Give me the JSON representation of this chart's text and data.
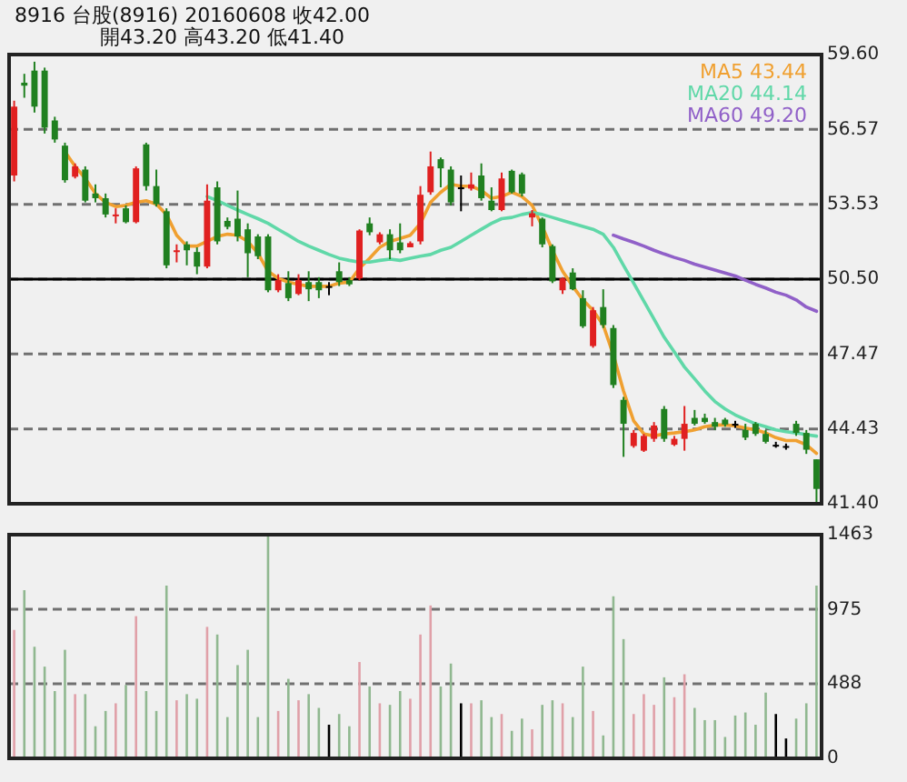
{
  "chart_data": [
    {
      "type": "candlestick",
      "title": "8916 台股(8916) 20160608 收42.00",
      "subtitle": "開43.20 高43.20 低41.40",
      "categories": [
        null,
        null,
        null,
        null,
        null,
        null,
        null,
        null,
        null,
        null,
        null,
        null,
        null,
        null,
        null,
        null,
        null,
        null,
        null,
        null,
        null,
        null,
        null,
        null,
        null,
        null,
        null,
        null,
        null,
        null,
        null,
        null,
        null,
        null,
        null,
        null,
        null,
        null,
        null,
        null,
        null,
        null,
        null,
        null,
        null,
        null,
        null,
        null,
        null,
        null,
        null,
        null,
        null,
        null,
        null,
        null,
        null,
        null,
        null,
        null,
        null,
        null,
        null,
        null,
        null,
        null,
        null,
        null,
        null,
        null,
        null,
        null,
        null,
        null,
        null,
        null,
        null,
        null,
        null,
        null
      ],
      "ohlc": [
        [
          54.7,
          57.73,
          54.46,
          57.49
        ],
        [
          58.46,
          58.82,
          57.85,
          58.34
        ],
        [
          58.95,
          59.31,
          57.25,
          57.49
        ],
        [
          58.95,
          59.07,
          56.4,
          56.64
        ],
        [
          56.93,
          57.08,
          56.03,
          56.16
        ],
        [
          55.91,
          56.03,
          54.41,
          54.51
        ],
        [
          54.65,
          55.19,
          54.58,
          55.07
        ],
        [
          54.94,
          55.07,
          53.61,
          53.68
        ],
        [
          53.97,
          54.34,
          53.61,
          53.78
        ],
        [
          53.78,
          53.97,
          53.0,
          53.12
        ],
        [
          53.05,
          53.37,
          52.76,
          53.12
        ],
        [
          53.37,
          53.49,
          52.76,
          52.81
        ],
        [
          52.81,
          55.07,
          52.76,
          54.99
        ],
        [
          55.96,
          56.03,
          54.09,
          54.27
        ],
        [
          54.27,
          54.94,
          53.44,
          53.54
        ],
        [
          53.25,
          53.37,
          50.94,
          51.06
        ],
        [
          51.6,
          51.91,
          51.18,
          51.67
        ],
        [
          51.91,
          52.03,
          51.06,
          51.67
        ],
        [
          51.6,
          51.79,
          50.7,
          51.01
        ],
        [
          51.01,
          54.34,
          50.94,
          53.68
        ],
        [
          54.22,
          54.46,
          51.91,
          52.03
        ],
        [
          52.86,
          53.0,
          52.52,
          52.62
        ],
        [
          52.95,
          54.09,
          52.03,
          52.23
        ],
        [
          52.52,
          52.76,
          50.58,
          51.55
        ],
        [
          52.23,
          52.32,
          51.31,
          51.43
        ],
        [
          52.23,
          52.32,
          49.97,
          50.05
        ],
        [
          50.05,
          50.7,
          49.97,
          50.46
        ],
        [
          50.34,
          50.82,
          49.61,
          49.73
        ],
        [
          49.9,
          50.7,
          49.85,
          50.46
        ],
        [
          50.38,
          50.82,
          49.61,
          50.09
        ],
        [
          50.38,
          50.58,
          49.73,
          50.05
        ],
        [
          50.22,
          50.38,
          49.85,
          50.22
        ],
        [
          50.82,
          51.18,
          50.22,
          50.38
        ],
        [
          50.46,
          50.58,
          50.22,
          50.29
        ],
        [
          50.53,
          52.52,
          50.46,
          52.47
        ],
        [
          52.76,
          53.0,
          52.28,
          52.4
        ],
        [
          51.99,
          52.4,
          51.91,
          52.32
        ],
        [
          52.32,
          52.52,
          51.31,
          51.67
        ],
        [
          51.99,
          52.76,
          51.55,
          51.67
        ],
        [
          51.79,
          52.03,
          51.79,
          51.96
        ],
        [
          52.03,
          54.27,
          51.91,
          53.92
        ],
        [
          54.02,
          55.67,
          53.92,
          55.07
        ],
        [
          55.36,
          55.43,
          54.22,
          54.99
        ],
        [
          54.94,
          55.07,
          53.49,
          53.61
        ],
        [
          54.22,
          54.7,
          53.25,
          54.22
        ],
        [
          54.17,
          54.82,
          54.09,
          54.34
        ],
        [
          54.7,
          55.19,
          53.68,
          53.78
        ],
        [
          53.68,
          54.22,
          53.25,
          53.3
        ],
        [
          53.3,
          54.82,
          53.25,
          54.58
        ],
        [
          54.89,
          54.94,
          53.97,
          54.02
        ],
        [
          54.75,
          54.82,
          53.85,
          53.97
        ],
        [
          53.0,
          53.3,
          52.64,
          53.17
        ],
        [
          52.95,
          53.0,
          51.79,
          51.91
        ],
        [
          51.84,
          51.91,
          50.34,
          50.41
        ],
        [
          50.05,
          50.58,
          49.9,
          50.53
        ],
        [
          50.77,
          50.94,
          50.05,
          50.09
        ],
        [
          49.73,
          50.05,
          48.52,
          48.59
        ],
        [
          47.79,
          49.37,
          47.72,
          49.24
        ],
        [
          49.37,
          50.09,
          48.52,
          48.64
        ],
        [
          48.52,
          48.64,
          46.09,
          46.21
        ],
        [
          45.61,
          45.73,
          43.3,
          44.64
        ],
        [
          43.74,
          44.39,
          43.67,
          44.27
        ],
        [
          43.55,
          44.23,
          43.5,
          44.15
        ],
        [
          44.03,
          44.71,
          43.91,
          44.57
        ],
        [
          45.24,
          45.36,
          43.91,
          44.03
        ],
        [
          43.79,
          44.15,
          43.74,
          44.03
        ],
        [
          44.03,
          45.36,
          43.55,
          44.64
        ],
        [
          44.88,
          45.2,
          44.57,
          44.64
        ],
        [
          44.88,
          45.05,
          44.64,
          44.71
        ],
        [
          44.71,
          44.88,
          44.39,
          44.52
        ],
        [
          44.81,
          44.88,
          44.52,
          44.61
        ],
        [
          44.64,
          44.76,
          44.47,
          44.64
        ],
        [
          44.39,
          44.64,
          43.98,
          44.08
        ],
        [
          44.64,
          44.71,
          44.15,
          44.23
        ],
        [
          44.23,
          44.39,
          43.84,
          43.91
        ],
        [
          43.79,
          43.91,
          43.67,
          43.79
        ],
        [
          43.74,
          43.84,
          43.59,
          43.74
        ],
        [
          44.64,
          44.76,
          44.15,
          44.27
        ],
        [
          44.27,
          44.39,
          43.42,
          43.59
        ],
        [
          43.2,
          43.2,
          41.4,
          42.0
        ]
      ],
      "colors": [
        "#e02020",
        "#208020",
        "#208020",
        "#208020",
        "#208020",
        "#208020",
        "#e02020",
        "#208020",
        "#208020",
        "#208020",
        "#e02020",
        "#208020",
        "#e02020",
        "#208020",
        "#208020",
        "#208020",
        "#e02020",
        "#208020",
        "#208020",
        "#e02020",
        "#208020",
        "#208020",
        "#208020",
        "#208020",
        "#208020",
        "#208020",
        "#e02020",
        "#208020",
        "#e02020",
        "#208020",
        "#208020",
        "#000000",
        "#208020",
        "#208020",
        "#e02020",
        "#208020",
        "#e02020",
        "#208020",
        "#208020",
        "#e02020",
        "#e02020",
        "#e02020",
        "#208020",
        "#208020",
        "#000000",
        "#e02020",
        "#208020",
        "#208020",
        "#e02020",
        "#208020",
        "#208020",
        "#e02020",
        "#208020",
        "#208020",
        "#e02020",
        "#208020",
        "#208020",
        "#e02020",
        "#208020",
        "#208020",
        "#208020",
        "#e02020",
        "#e02020",
        "#e02020",
        "#208020",
        "#e02020",
        "#e02020",
        "#208020",
        "#208020",
        "#208020",
        "#208020",
        "#000000",
        "#208020",
        "#208020",
        "#208020",
        "#000000",
        "#000000",
        "#208020",
        "#208020",
        "#208020"
      ],
      "series": [
        {
          "type": "line",
          "name": "MA5 43.44",
          "color": "#f0a030",
          "values": [
            null,
            null,
            null,
            null,
            null,
            55.67,
            55.07,
            54.58,
            53.97,
            53.61,
            53.44,
            53.49,
            53.61,
            53.68,
            53.54,
            53.12,
            52.28,
            51.84,
            51.84,
            52.03,
            52.23,
            52.32,
            52.28,
            52.03,
            51.55,
            50.82,
            50.53,
            50.38,
            50.29,
            50.21,
            50.21,
            50.21,
            50.34,
            50.38,
            50.94,
            51.35,
            51.79,
            52.03,
            52.15,
            52.28,
            52.76,
            53.61,
            54.02,
            54.34,
            54.27,
            54.27,
            54.09,
            53.78,
            53.85,
            54.02,
            53.85,
            53.49,
            52.64,
            51.67,
            50.82,
            50.21,
            49.66,
            49.24,
            48.64,
            47.43,
            45.97,
            44.76,
            44.23,
            44.15,
            44.23,
            44.27,
            44.32,
            44.39,
            44.52,
            44.59,
            44.59,
            44.56,
            44.47,
            44.39,
            44.27,
            44.08,
            43.96,
            43.96,
            43.79,
            43.44
          ]
        },
        {
          "type": "line",
          "name": "MA20 44.14",
          "color": "#60d8a8",
          "values": [
            null,
            null,
            null,
            null,
            null,
            null,
            null,
            null,
            null,
            null,
            null,
            null,
            null,
            null,
            null,
            null,
            null,
            null,
            null,
            53.85,
            53.68,
            53.49,
            53.3,
            53.12,
            52.95,
            52.76,
            52.52,
            52.28,
            52.03,
            51.84,
            51.67,
            51.5,
            51.35,
            51.26,
            51.19,
            51.19,
            51.26,
            51.31,
            51.26,
            51.35,
            51.43,
            51.5,
            51.67,
            51.79,
            52.03,
            52.28,
            52.52,
            52.76,
            52.95,
            53.0,
            53.12,
            53.2,
            53.12,
            53.0,
            52.88,
            52.76,
            52.64,
            52.52,
            52.32,
            51.79,
            51.06,
            50.34,
            49.61,
            48.88,
            48.15,
            47.55,
            46.94,
            46.46,
            45.97,
            45.54,
            45.24,
            45.0,
            44.81,
            44.64,
            44.52,
            44.39,
            44.32,
            44.27,
            44.2,
            44.14
          ]
        },
        {
          "type": "line",
          "name": "MA60 49.20",
          "color": "#9060c8",
          "values": [
            null,
            null,
            null,
            null,
            null,
            null,
            null,
            null,
            null,
            null,
            null,
            null,
            null,
            null,
            null,
            null,
            null,
            null,
            null,
            null,
            null,
            null,
            null,
            null,
            null,
            null,
            null,
            null,
            null,
            null,
            null,
            null,
            null,
            null,
            null,
            null,
            null,
            null,
            null,
            null,
            null,
            null,
            null,
            null,
            null,
            null,
            null,
            null,
            null,
            null,
            null,
            null,
            null,
            null,
            null,
            null,
            null,
            null,
            null,
            52.28,
            52.13,
            51.99,
            51.84,
            51.67,
            51.52,
            51.38,
            51.26,
            51.11,
            50.99,
            50.87,
            50.75,
            50.63,
            50.46,
            50.29,
            50.14,
            49.97,
            49.85,
            49.66,
            49.37,
            49.2
          ]
        }
      ],
      "ylim": [
        41.4,
        59.6
      ],
      "yticks": [
        {
          "value": 59.6,
          "label": "59.60"
        },
        {
          "value": 56.57,
          "label": "56.57"
        },
        {
          "value": 53.53,
          "label": "53.53"
        },
        {
          "value": 50.5,
          "label": "50.50"
        },
        {
          "value": 47.47,
          "label": "47.47"
        },
        {
          "value": 44.43,
          "label": "44.43"
        },
        {
          "value": 41.4,
          "label": "41.40"
        }
      ],
      "ref_lines": [
        {
          "axis": "y",
          "value": 50.5,
          "color": "#000000"
        }
      ],
      "grid": "y",
      "legend": "top right",
      "tick_labels": "y"
    },
    {
      "type": "bar",
      "categories": [
        null,
        null,
        null,
        null,
        null,
        null,
        null,
        null,
        null,
        null,
        null,
        null,
        null,
        null,
        null,
        null,
        null,
        null,
        null,
        null,
        null,
        null,
        null,
        null,
        null,
        null,
        null,
        null,
        null,
        null,
        null,
        null,
        null,
        null,
        null,
        null,
        null,
        null,
        null,
        null,
        null,
        null,
        null,
        null,
        null,
        null,
        null,
        null,
        null,
        null,
        null,
        null,
        null,
        null,
        null,
        null,
        null,
        null,
        null,
        null,
        null,
        null,
        null,
        null,
        null,
        null,
        null,
        null,
        null,
        null,
        null,
        null,
        null,
        null,
        null,
        null,
        null,
        null,
        null,
        null
      ],
      "values": [
        840,
        1100,
        730,
        600,
        440,
        710,
        420,
        420,
        210,
        310,
        360,
        480,
        930,
        440,
        310,
        1130,
        380,
        420,
        390,
        860,
        810,
        270,
        610,
        710,
        270,
        1463,
        310,
        520,
        380,
        420,
        330,
        220,
        290,
        210,
        630,
        470,
        360,
        350,
        440,
        390,
        810,
        1000,
        470,
        620,
        360,
        360,
        380,
        270,
        290,
        180,
        260,
        190,
        350,
        380,
        360,
        270,
        600,
        310,
        150,
        1060,
        780,
        290,
        420,
        350,
        530,
        400,
        550,
        330,
        250,
        250,
        140,
        280,
        300,
        220,
        430,
        290,
        130,
        260,
        360,
        1130
      ],
      "colors": [
        "#e0a0a8",
        "#90b890",
        "#90b890",
        "#90b890",
        "#90b890",
        "#90b890",
        "#e0a0a8",
        "#90b890",
        "#90b890",
        "#90b890",
        "#e0a0a8",
        "#90b890",
        "#e0a0a8",
        "#90b890",
        "#90b890",
        "#90b890",
        "#e0a0a8",
        "#90b890",
        "#90b890",
        "#e0a0a8",
        "#90b890",
        "#90b890",
        "#90b890",
        "#90b890",
        "#90b890",
        "#90b890",
        "#e0a0a8",
        "#90b890",
        "#e0a0a8",
        "#90b890",
        "#90b890",
        "#000000",
        "#90b890",
        "#90b890",
        "#e0a0a8",
        "#90b890",
        "#e0a0a8",
        "#90b890",
        "#90b890",
        "#e0a0a8",
        "#e0a0a8",
        "#e0a0a8",
        "#90b890",
        "#90b890",
        "#000000",
        "#e0a0a8",
        "#90b890",
        "#90b890",
        "#e0a0a8",
        "#90b890",
        "#90b890",
        "#e0a0a8",
        "#90b890",
        "#90b890",
        "#e0a0a8",
        "#90b890",
        "#90b890",
        "#e0a0a8",
        "#90b890",
        "#90b890",
        "#90b890",
        "#e0a0a8",
        "#e0a0a8",
        "#e0a0a8",
        "#90b890",
        "#e0a0a8",
        "#e0a0a8",
        "#90b890",
        "#90b890",
        "#90b890",
        "#90b890",
        "#90b890",
        "#90b890",
        "#90b890",
        "#90b890",
        "#000000",
        "#000000",
        "#90b890",
        "#90b890",
        "#90b890"
      ],
      "ylim": [
        0,
        1463
      ],
      "yticks": [
        0,
        488,
        975,
        1463
      ],
      "grid": "y",
      "tick_labels": "y"
    }
  ]
}
